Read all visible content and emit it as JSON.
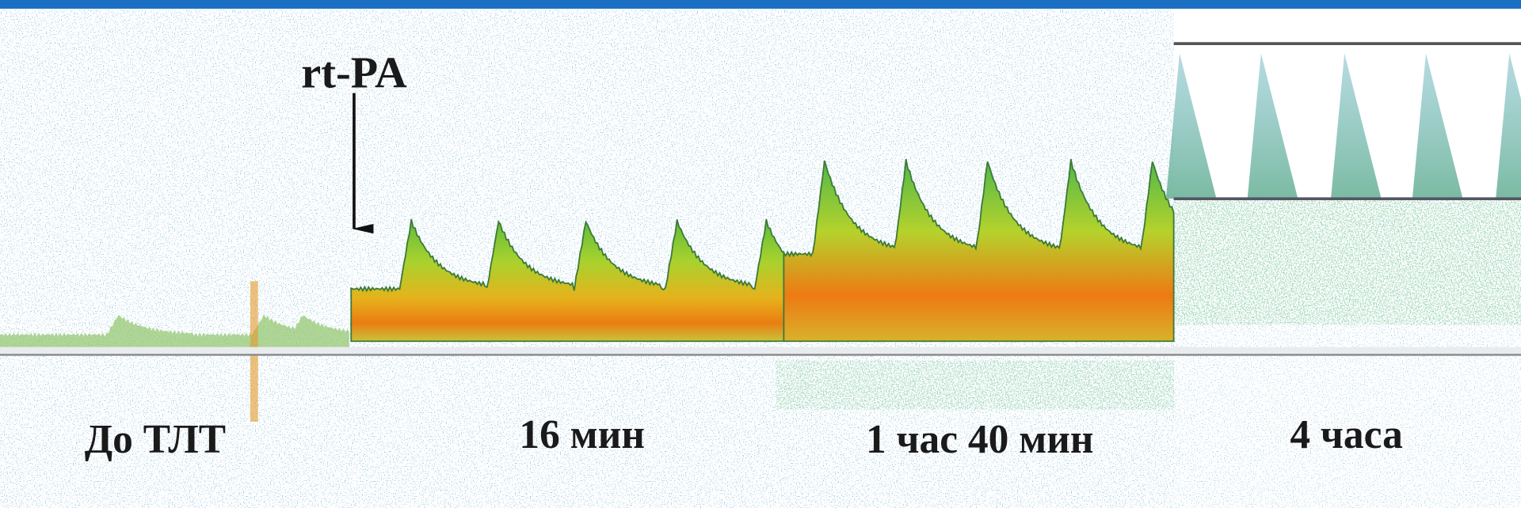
{
  "annotation": {
    "drug": "rt-PA"
  },
  "phases": [
    "До ТЛТ",
    "16 мин",
    "1 час 40 мин",
    "4 часа"
  ]
}
